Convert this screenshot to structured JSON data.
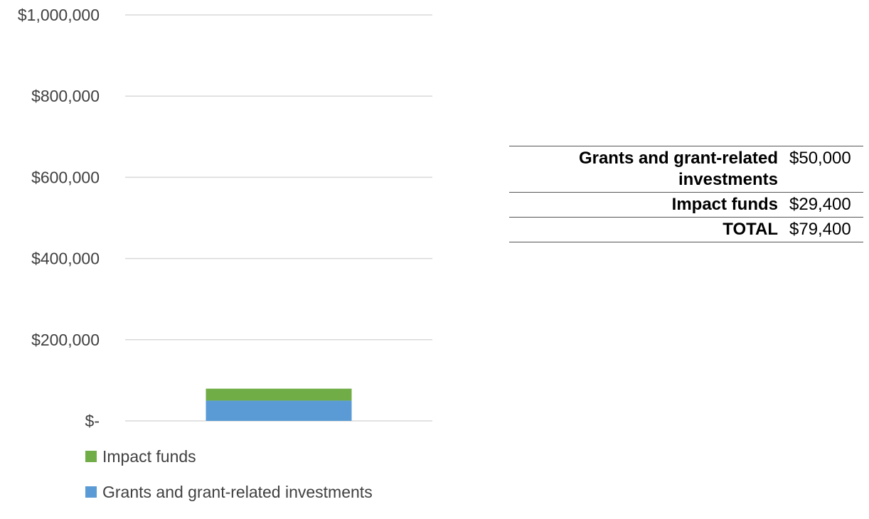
{
  "chart_data": {
    "type": "bar",
    "stacked": true,
    "categories": [
      ""
    ],
    "series": [
      {
        "name": "Grants and grant-related investments",
        "values": [
          50000
        ],
        "color": "#5B9BD5"
      },
      {
        "name": "Impact funds",
        "values": [
          29400
        ],
        "color": "#70AD47"
      }
    ],
    "ylim": [
      0,
      1000000
    ],
    "yticks": [
      0,
      200000,
      400000,
      600000,
      800000,
      1000000
    ],
    "ytick_labels": [
      "$-",
      "$200,000",
      "$400,000",
      "$600,000",
      "$800,000",
      "$1,000,000"
    ],
    "grid": true,
    "legend": [
      {
        "label": "Impact funds",
        "color": "#70AD47"
      },
      {
        "label": "Grants and grant-related investments",
        "color": "#5B9BD5"
      }
    ],
    "legend_position": "bottom"
  },
  "summary_table": {
    "rows": [
      {
        "label": "Grants and grant-related investments",
        "value": "$50,000"
      },
      {
        "label": "Impact funds",
        "value": "$29,400"
      },
      {
        "label": "TOTAL",
        "value": "$79,400"
      }
    ]
  }
}
